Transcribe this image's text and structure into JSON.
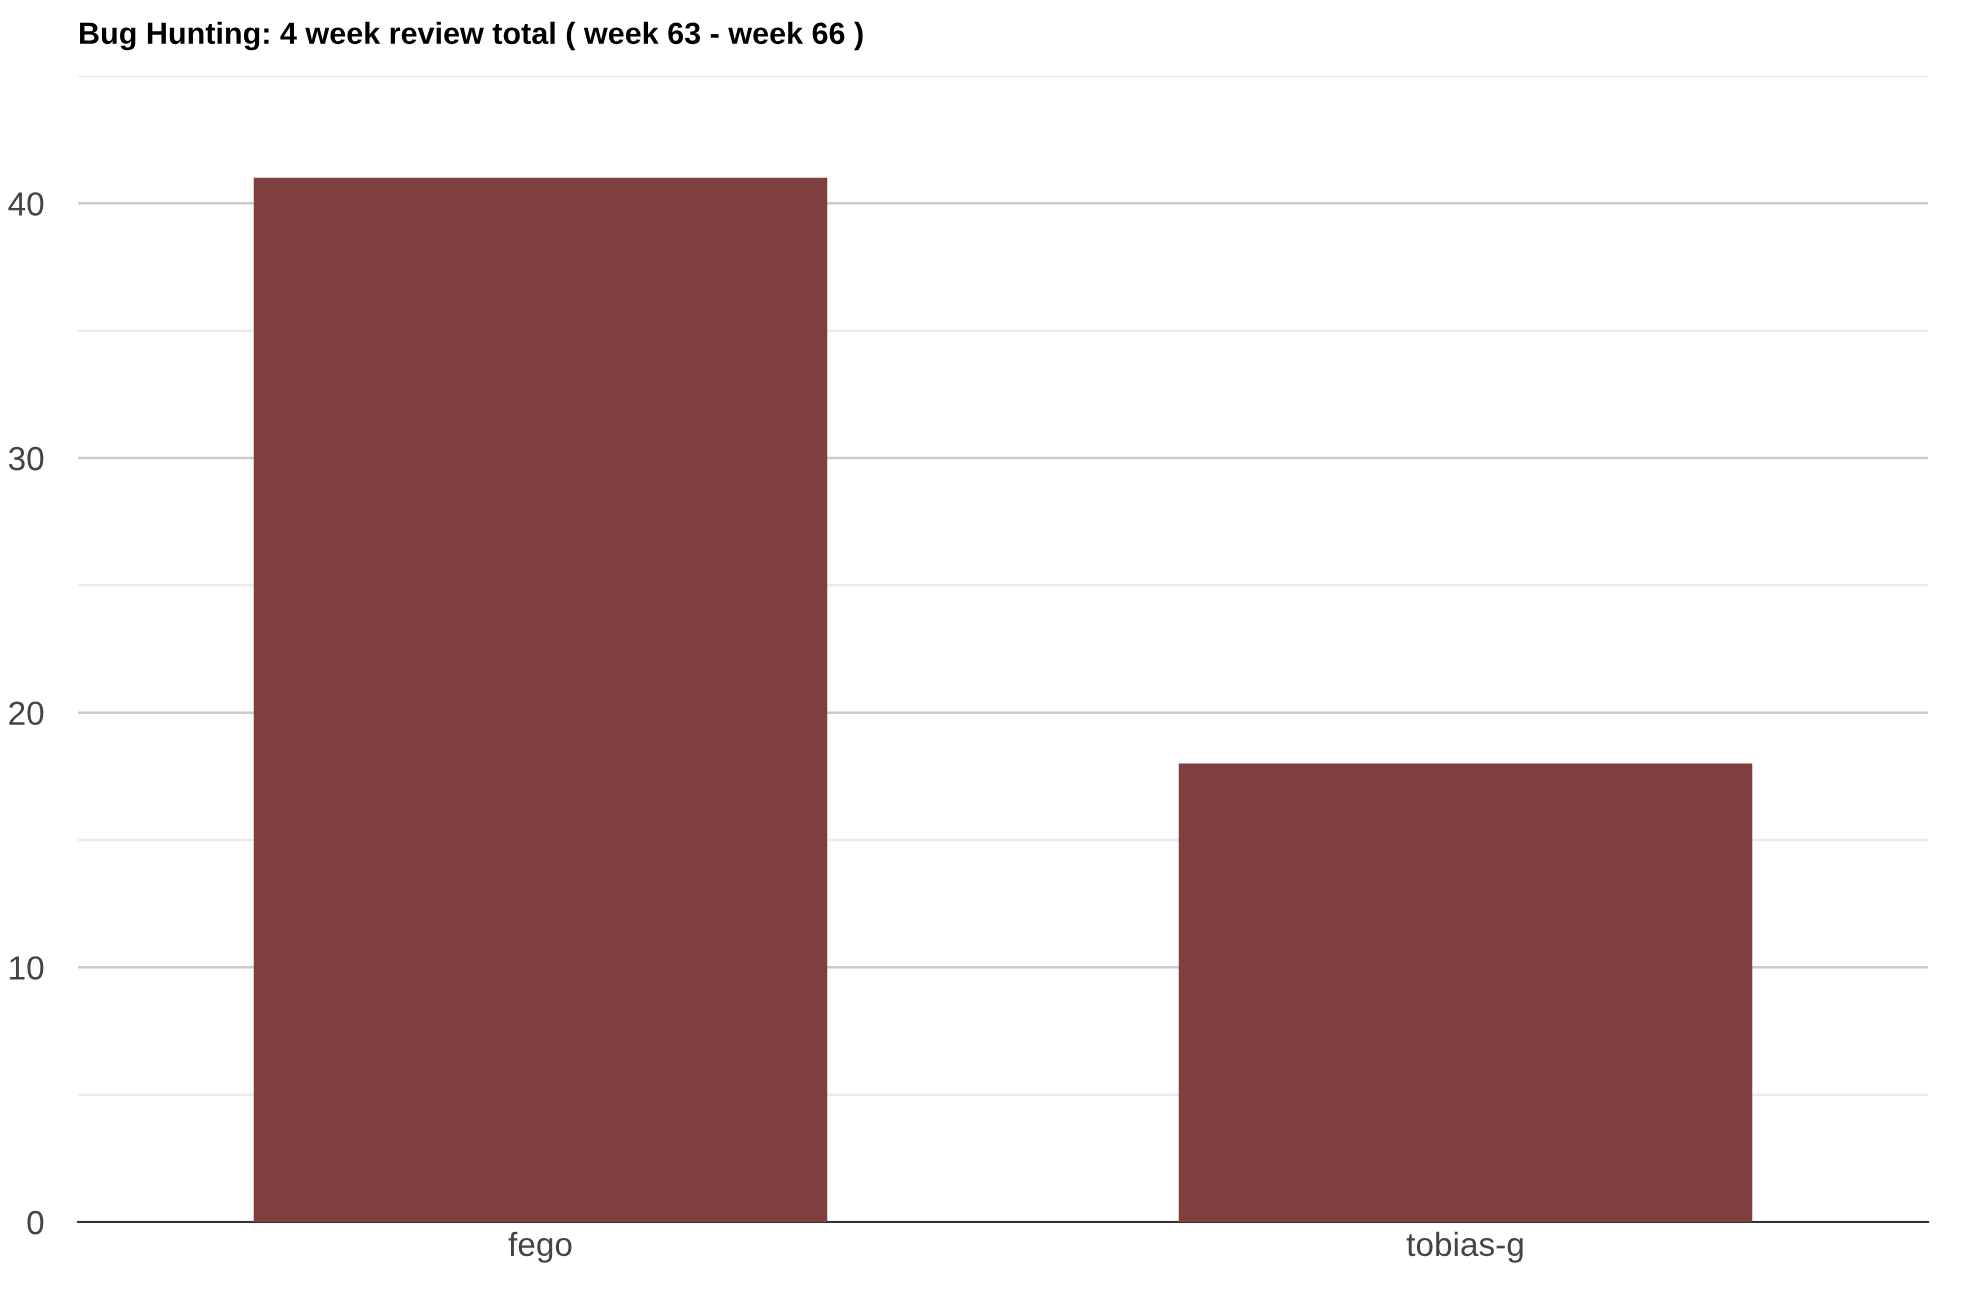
{
  "chart_data": {
    "type": "bar",
    "title": "Bug Hunting: 4 week review total ( week 63 - week 66 )",
    "categories": [
      "fego",
      "tobias-g"
    ],
    "values": [
      41,
      18
    ],
    "color": "#803f3f",
    "ylim": [
      0,
      45
    ],
    "yticks": [
      0,
      {
        "value": 5,
        "label": null
      },
      10,
      {
        "value": 15,
        "label": null
      },
      20,
      {
        "value": 25,
        "label": null
      },
      30,
      {
        "value": 35,
        "label": null
      },
      40,
      {
        "value": 45,
        "label": null
      }
    ],
    "grid": "y"
  }
}
